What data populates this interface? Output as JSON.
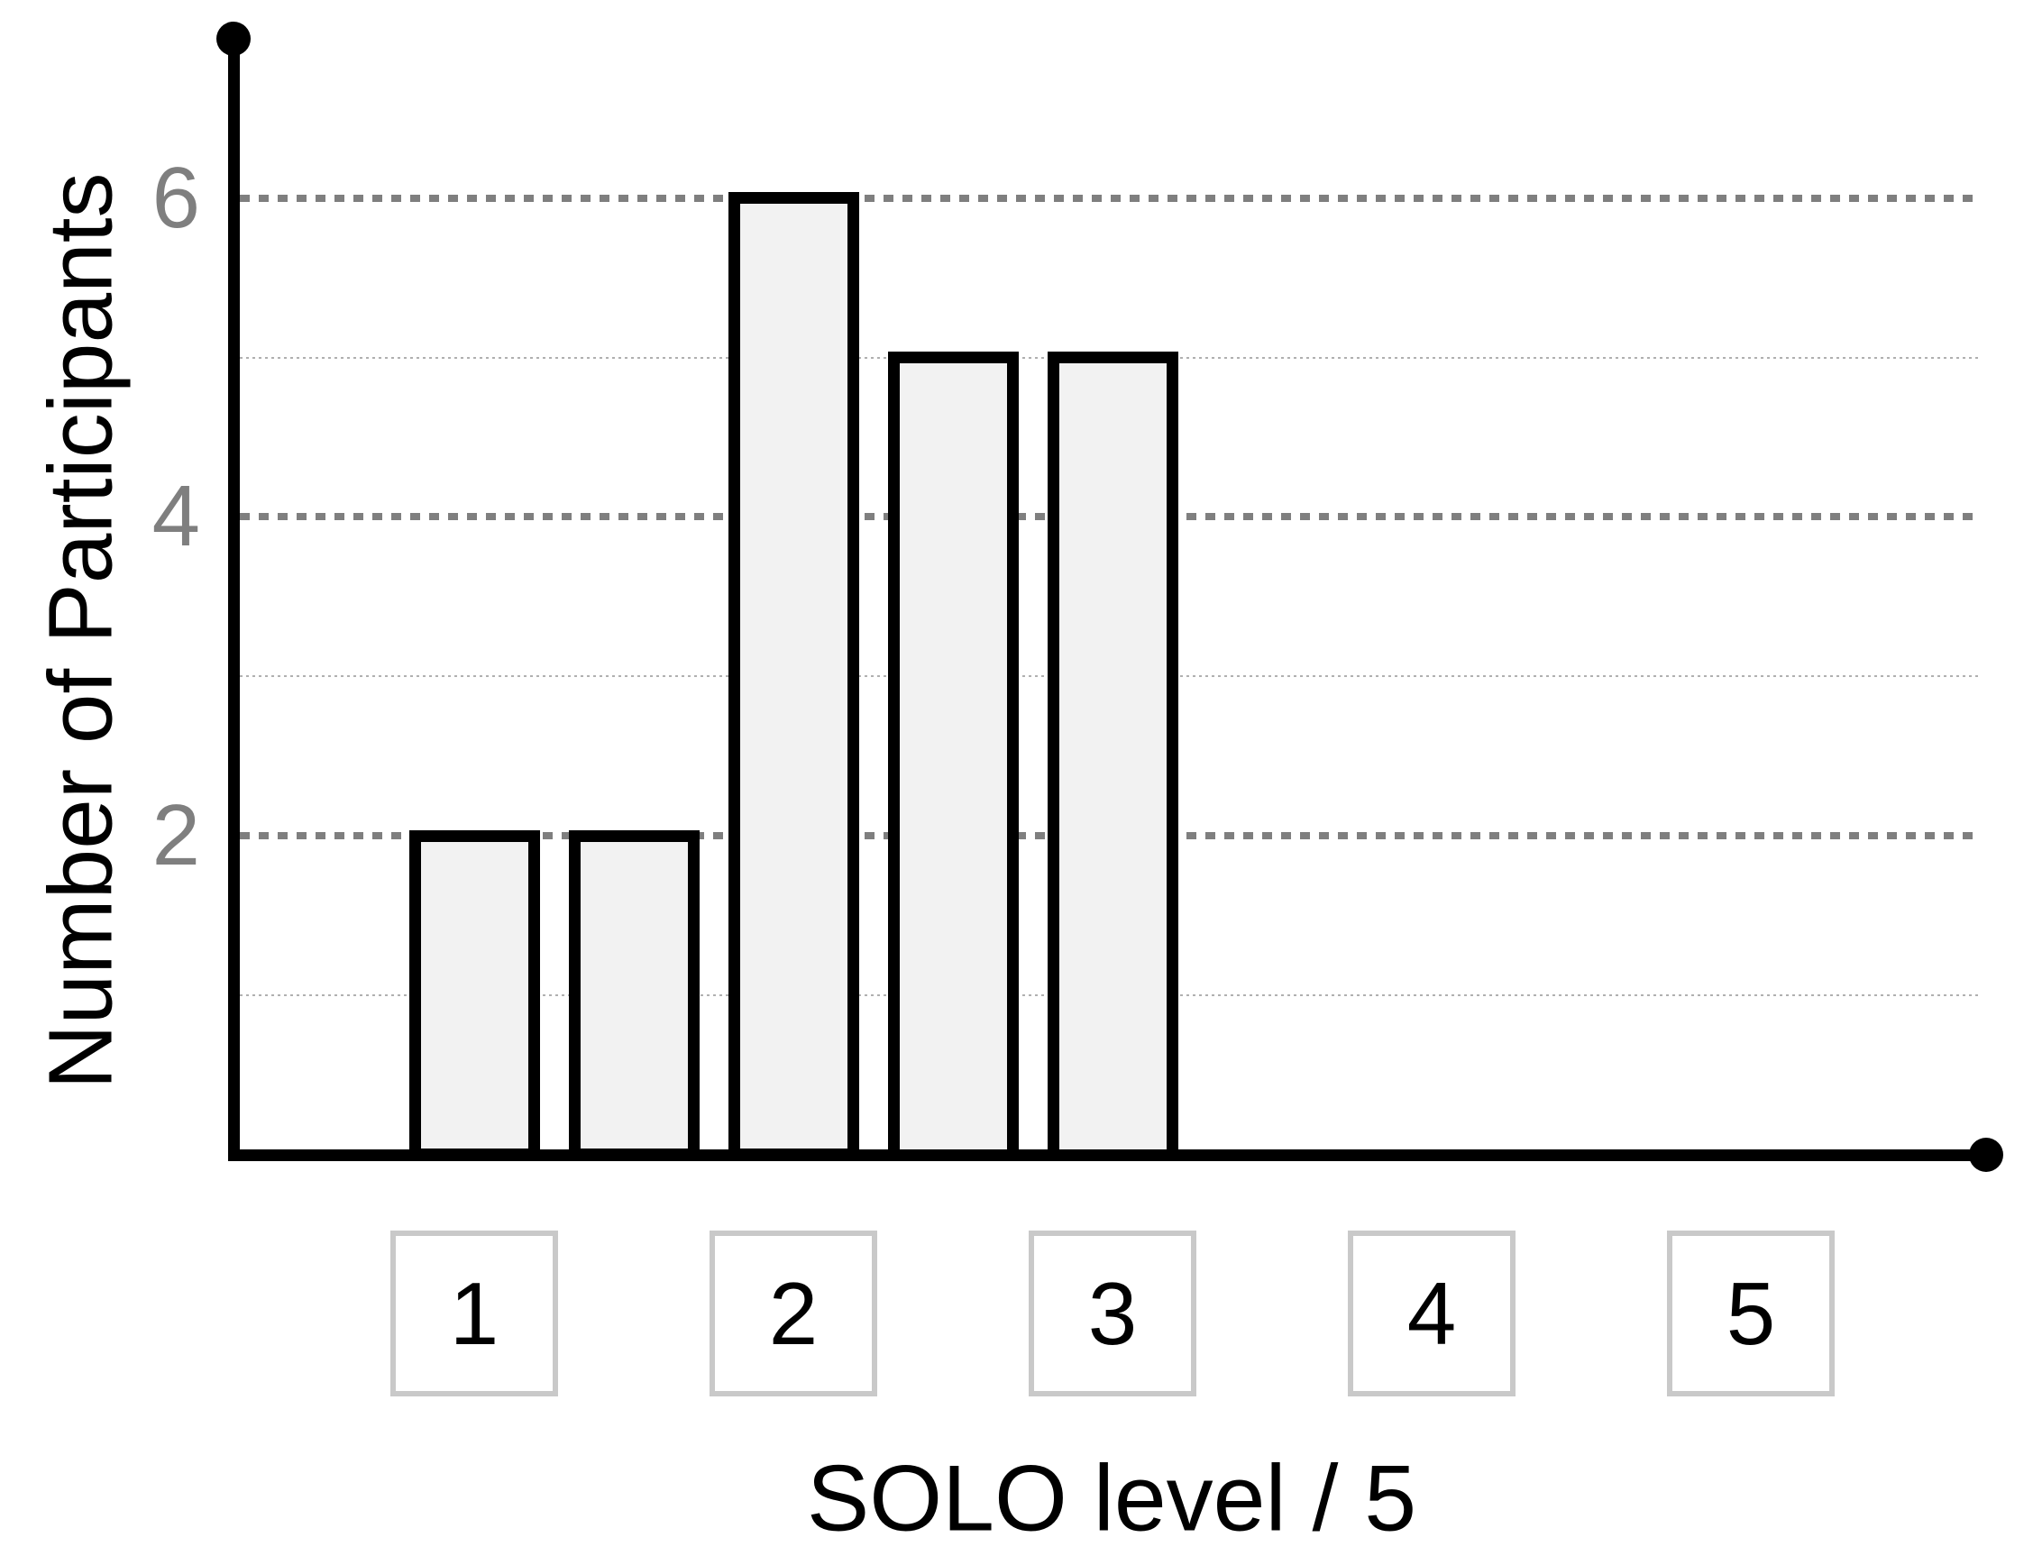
{
  "figure": {
    "background": "#ffffff"
  },
  "chart_data": {
    "type": "bar",
    "title": "",
    "xlabel": "SOLO level / 5",
    "ylabel": "Number of Participants",
    "x": [
      1,
      1.5,
      2,
      2.5,
      3
    ],
    "values": [
      2,
      2,
      6,
      5,
      5
    ],
    "x_tick_boxes": [
      {
        "label": "1",
        "position": 1
      },
      {
        "label": "2",
        "position": 2
      },
      {
        "label": "3",
        "position": 3
      },
      {
        "label": "4",
        "position": 4
      },
      {
        "label": "5",
        "position": 5
      }
    ],
    "y_tick_labels": [
      {
        "label": "2",
        "value": 2
      },
      {
        "label": "4",
        "value": 4
      },
      {
        "label": "6",
        "value": 6
      }
    ],
    "y_gridlines_major": [
      2,
      4,
      6
    ],
    "y_gridlines_minor": [
      1,
      3,
      5
    ],
    "ylim": [
      0,
      7
    ],
    "xlim": [
      0.25,
      5.75
    ],
    "grid": "horizontal dotted",
    "legend": null,
    "axis_end_markers": "filled circles at top of y-axis and right of x-axis",
    "colors": {
      "bar_fill": "#f2f2f2",
      "bar_border": "#000000",
      "axis": "#000000",
      "major_grid": "#7f7f7f",
      "minor_grid": "#b0b0b0",
      "tick_label": "#7f7f7f",
      "x_box_border": "#c9c9c9",
      "x_box_fill": "#ffffff",
      "text": "#000000"
    }
  }
}
